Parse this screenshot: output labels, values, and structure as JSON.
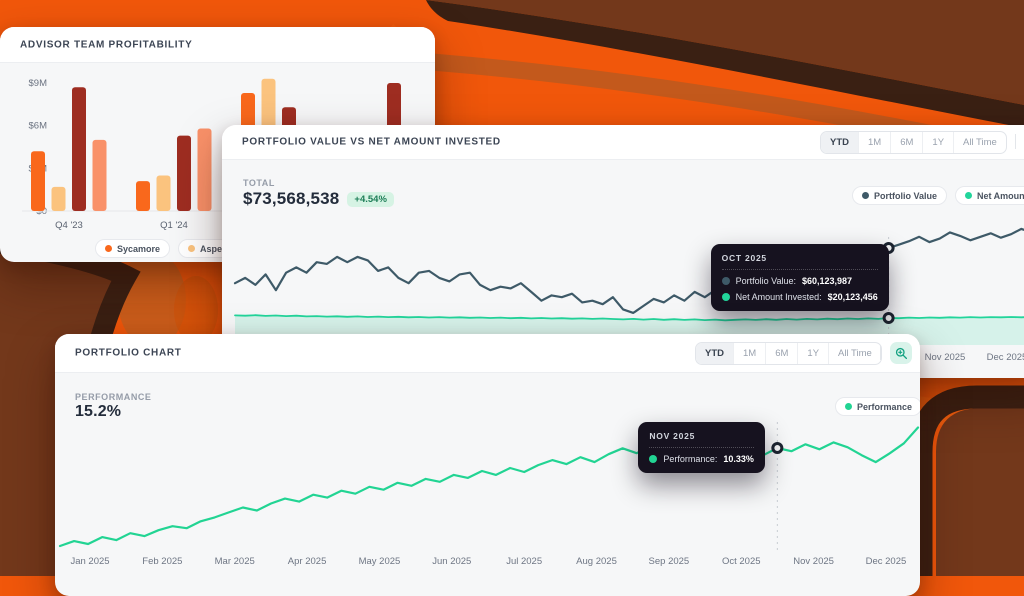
{
  "palette": {
    "bg_orange": "#F1570B",
    "bg_brown": "#73381B",
    "bg_dark_band": "#3A2013",
    "bg_muted_band": "#C05A1D",
    "accent_green": "#22D59B",
    "accent_slate": "#3E5A68",
    "badge_green_bg": "#D6F3E4",
    "badge_green_text": "#1D7E57"
  },
  "card_advisor": {
    "title": "ADVISOR TEAM PROFITABILITY"
  },
  "card_portfolio": {
    "title": "PORTFOLIO VALUE VS NET AMOUNT INVESTED",
    "tabs": {
      "options": [
        "YTD",
        "1M",
        "6M",
        "1Y",
        "All Time"
      ],
      "active": "YTD"
    },
    "total_label": "TOTAL",
    "total_value": "$73,568,538",
    "change_badge": "+4.54%",
    "tooltip": {
      "title": "OCT 2025",
      "rows": [
        {
          "label": "Portfolio Value:",
          "value": "$60,123,987",
          "color": "#3E5A68"
        },
        {
          "label": "Net Amount Invested:",
          "value": "$20,123,456",
          "color": "#22D59B"
        }
      ]
    }
  },
  "card_chart": {
    "title": "PORTFOLIO CHART",
    "tabs": {
      "options": [
        "YTD",
        "1M",
        "6M",
        "1Y",
        "All Time"
      ],
      "active": "YTD"
    },
    "performance_label": "PERFORMANCE",
    "performance_value": "15.2%",
    "tooltip": {
      "title": "NOV 2025",
      "rows": [
        {
          "label": "Performance:",
          "value": "10.33%",
          "color": "#22D493"
        }
      ]
    }
  },
  "chart_data": [
    {
      "type": "bar",
      "title": "ADVISOR TEAM PROFITABILITY",
      "unit": "$M",
      "categories": [
        "Q4 '23",
        "Q1 '24",
        "",
        ""
      ],
      "ytick_values": [
        0,
        3,
        6,
        9
      ],
      "ytick_labels": [
        "$0",
        "$3M",
        "$6M",
        "$9M"
      ],
      "ylim": [
        0,
        9.6
      ],
      "series": [
        {
          "name": "Sycamore",
          "color": "#F9681C",
          "values": [
            4.2,
            2.1,
            8.3,
            null
          ]
        },
        {
          "name": "Aspen",
          "color": "#FBC37E",
          "values": [
            1.7,
            2.5,
            9.3,
            null
          ]
        },
        {
          "name": null,
          "color": "#9E2D21",
          "values": [
            8.7,
            5.3,
            7.3,
            9.0
          ]
        },
        {
          "name": null,
          "color": "#F99169",
          "values": [
            5.0,
            5.8,
            null,
            null
          ]
        }
      ]
    },
    {
      "type": "line",
      "title": "PORTFOLIO VALUE VS NET AMOUNT INVESTED",
      "unit": "$M",
      "marker_index": 64,
      "marker_label": "OCT 2025",
      "x_axis_visible_labels": [
        "Nov 2025",
        "Dec 2025"
      ],
      "series": [
        {
          "name": "Portfolio Value",
          "color": "#3E5A68",
          "fill": false,
          "values": [
            40,
            43,
            39,
            45,
            36,
            46,
            49,
            46,
            52,
            51,
            55,
            52,
            55,
            53,
            47,
            49,
            43,
            40,
            46,
            47,
            43,
            41,
            45,
            46,
            39,
            36,
            38,
            37,
            40,
            35,
            30,
            33,
            32,
            34,
            29,
            30,
            28,
            32,
            25,
            23,
            27,
            31,
            29,
            33,
            30,
            35,
            32,
            36,
            31,
            34,
            38,
            36,
            40,
            42,
            39,
            44,
            47,
            45,
            50,
            48,
            52,
            55,
            54,
            57,
            60.1,
            62,
            64,
            66.5,
            63.5,
            65.5,
            69,
            67,
            64.5,
            66.5,
            68.5,
            66,
            68,
            71,
            69,
            72.5,
            73
          ]
        },
        {
          "name": "Net Amount Invested",
          "color": "#22D59B",
          "fill": true,
          "values": [
            21.6,
            21.4,
            21.7,
            21.3,
            21.5,
            21.2,
            21.4,
            21.0,
            21.2,
            20.9,
            21.1,
            20.8,
            21.0,
            20.7,
            20.9,
            20.6,
            20.8,
            20.5,
            20.7,
            20.4,
            20.6,
            20.3,
            20.5,
            20.2,
            20.4,
            20.1,
            20.3,
            20.0,
            20.2,
            19.9,
            20.1,
            19.8,
            20.0,
            19.7,
            19.9,
            19.6,
            19.8,
            19.5,
            19.3,
            19.6,
            19.2,
            19.5,
            19.1,
            19.4,
            19.0,
            19.3,
            18.9,
            19.2,
            18.8,
            19.1,
            19.3,
            19.0,
            19.4,
            19.1,
            19.5,
            19.2,
            19.6,
            19.3,
            19.7,
            19.4,
            19.8,
            19.5,
            19.9,
            19.6,
            20.1,
            20.0,
            20.3,
            20.1,
            20.4,
            20.2,
            20.5,
            20.3,
            20.6,
            20.4,
            20.6,
            20.5,
            20.7,
            20.5,
            20.8,
            20.6,
            20.7
          ]
        }
      ]
    },
    {
      "type": "line",
      "title": "PORTFOLIO CHART",
      "unit": "%",
      "marker_index": 51,
      "marker_label": "NOV 2025",
      "x_labels": [
        "Jan 2025",
        "Feb 2025",
        "Mar 2025",
        "Apr 2025",
        "May 2025",
        "Jun 2025",
        "Jul 2025",
        "Aug 2025",
        "Sep 2025",
        "Oct 2025",
        "Nov 2025",
        "Dec 2025"
      ],
      "series": [
        {
          "name": "Performance",
          "color": "#22D493",
          "fill": false,
          "values": [
            0.4,
            0.9,
            0.6,
            1.3,
            1.0,
            1.7,
            1.4,
            2.0,
            2.4,
            2.2,
            2.9,
            3.3,
            3.8,
            4.3,
            4.0,
            4.7,
            5.2,
            4.9,
            5.6,
            5.3,
            6.0,
            5.7,
            6.4,
            6.1,
            6.8,
            6.5,
            7.2,
            6.9,
            7.6,
            7.3,
            8.0,
            7.6,
            8.3,
            7.9,
            8.6,
            9.1,
            8.7,
            9.4,
            8.9,
            9.7,
            10.3,
            9.8,
            10.6,
            10.1,
            9.5,
            10.2,
            9.0,
            9.8,
            9.3,
            10.0,
            9.6,
            10.33,
            10.0,
            10.7,
            10.2,
            10.9,
            10.4,
            9.6,
            8.9,
            9.8,
            10.8,
            12.4
          ]
        }
      ]
    }
  ]
}
